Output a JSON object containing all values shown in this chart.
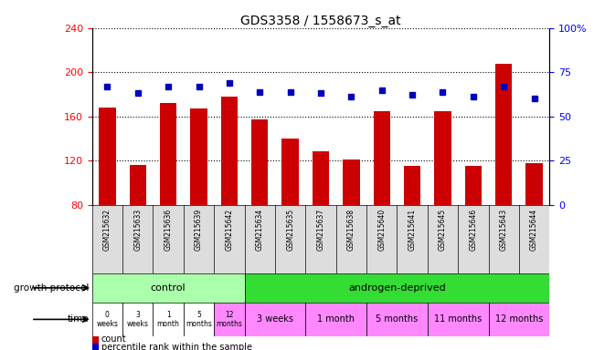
{
  "title": "GDS3358 / 1558673_s_at",
  "samples": [
    "GSM215632",
    "GSM215633",
    "GSM215636",
    "GSM215639",
    "GSM215642",
    "GSM215634",
    "GSM215635",
    "GSM215637",
    "GSM215638",
    "GSM215640",
    "GSM215641",
    "GSM215645",
    "GSM215646",
    "GSM215643",
    "GSM215644"
  ],
  "counts": [
    168,
    116,
    172,
    167,
    178,
    157,
    140,
    128,
    121,
    165,
    115,
    165,
    115,
    208,
    118
  ],
  "percentile": [
    67,
    63,
    67,
    67,
    69,
    64,
    64,
    63,
    61,
    65,
    62,
    64,
    61,
    67,
    60
  ],
  "ylim_left": [
    80,
    240
  ],
  "ylim_right": [
    0,
    100
  ],
  "yticks_left": [
    80,
    120,
    160,
    200,
    240
  ],
  "yticks_right": [
    0,
    25,
    50,
    75,
    100
  ],
  "bar_color": "#cc0000",
  "dot_color": "#0000bb",
  "control_color": "#aaffaa",
  "androgen_color": "#33dd33",
  "time_white": "#ffffff",
  "time_pink": "#ff88ff",
  "control_label": "control",
  "androgen_label": "androgen-deprived",
  "time_control_labels": [
    "0\nweeks",
    "3\nweeks",
    "1\nmonth",
    "5\nmonths",
    "12\nmonths"
  ],
  "time_androgen_labels": [
    "3 weeks",
    "1 month",
    "5 months",
    "11 months",
    "12 months"
  ],
  "time_androgen_spans": [
    2,
    2,
    2,
    2,
    2
  ],
  "control_count": 5,
  "legend_count": "count",
  "legend_pct": "percentile rank within the sample",
  "sample_bg": "#dddddd"
}
